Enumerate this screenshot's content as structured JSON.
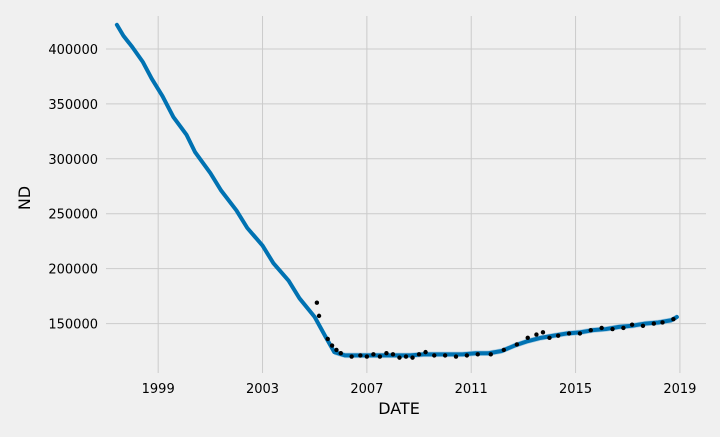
{
  "chart_data": {
    "type": "line",
    "title": "",
    "xlabel": "DATE",
    "ylabel": "ND",
    "x_ticks": [
      "1999",
      "2003",
      "2007",
      "2011",
      "2015",
      "2019"
    ],
    "y_ticks": [
      150000,
      200000,
      250000,
      300000,
      350000,
      400000
    ],
    "xlim": [
      "1997-01-01",
      "2020-01-01"
    ],
    "ylim": [
      105000,
      430000
    ],
    "grid": true,
    "colors": {
      "forecast_line": "#0072B2",
      "uncertainty_band": "#9fc7e0",
      "observed_points": "#000000",
      "grid": "#cbcbcb",
      "background": "#f0f0f0"
    },
    "series": [
      {
        "type": "line",
        "points": [
          [
            "1997-06-01",
            422000
          ],
          [
            "1997-09-01",
            412000
          ],
          [
            "1998-01-01",
            402000
          ],
          [
            "1998-06-01",
            388000
          ],
          [
            "1998-10-01",
            373000
          ],
          [
            "1999-03-01",
            357000
          ],
          [
            "1999-08-01",
            338000
          ],
          [
            "2000-02-01",
            322000
          ],
          [
            "2000-06-01",
            306000
          ],
          [
            "2001-01-01",
            287000
          ],
          [
            "2001-06-01",
            271000
          ],
          [
            "2002-01-01",
            253000
          ],
          [
            "2002-06-01",
            237000
          ],
          [
            "2003-01-01",
            221000
          ],
          [
            "2003-06-01",
            205000
          ],
          [
            "2004-01-01",
            189000
          ],
          [
            "2004-06-01",
            173000
          ],
          [
            "2005-01-01",
            156000
          ],
          [
            "2005-06-01",
            138000
          ],
          [
            "2005-10-01",
            124000
          ],
          [
            "2006-03-01",
            121000
          ],
          [
            "2006-09-01",
            121000
          ],
          [
            "2007-03-01",
            121000
          ],
          [
            "2007-09-01",
            121000
          ],
          [
            "2008-03-01",
            121000
          ],
          [
            "2008-09-01",
            121000
          ],
          [
            "2009-03-01",
            122000
          ],
          [
            "2009-09-01",
            122000
          ],
          [
            "2010-03-01",
            122000
          ],
          [
            "2010-09-01",
            122000
          ],
          [
            "2011-03-01",
            123000
          ],
          [
            "2011-09-01",
            123000
          ],
          [
            "2012-03-01",
            125000
          ],
          [
            "2012-09-01",
            130000
          ],
          [
            "2013-03-01",
            134000
          ],
          [
            "2013-09-01",
            137000
          ],
          [
            "2014-03-01",
            139000
          ],
          [
            "2014-09-01",
            141000
          ],
          [
            "2015-03-01",
            142000
          ],
          [
            "2015-09-01",
            144000
          ],
          [
            "2016-03-01",
            145000
          ],
          [
            "2016-09-01",
            147000
          ],
          [
            "2017-03-01",
            148000
          ],
          [
            "2017-09-01",
            150000
          ],
          [
            "2018-03-01",
            151000
          ],
          [
            "2018-09-01",
            153000
          ],
          [
            "2018-11-20",
            156000
          ]
        ],
        "band_halfwidth": 2500
      },
      {
        "type": "scatter",
        "points": [
          [
            "2005-02-01",
            169000
          ],
          [
            "2005-03-01",
            157000
          ],
          [
            "2005-07-01",
            136000
          ],
          [
            "2005-09-01",
            130000
          ],
          [
            "2005-11-01",
            126000
          ],
          [
            "2006-01-01",
            123000
          ],
          [
            "2006-06-01",
            120000
          ],
          [
            "2006-10-01",
            121000
          ],
          [
            "2007-01-01",
            120000
          ],
          [
            "2007-04-01",
            122000
          ],
          [
            "2007-07-01",
            120000
          ],
          [
            "2007-10-01",
            123000
          ],
          [
            "2008-01-01",
            122000
          ],
          [
            "2008-04-01",
            119000
          ],
          [
            "2008-07-01",
            120000
          ],
          [
            "2008-10-01",
            119000
          ],
          [
            "2009-01-01",
            122000
          ],
          [
            "2009-04-01",
            124000
          ],
          [
            "2009-08-01",
            121000
          ],
          [
            "2010-01-01",
            121000
          ],
          [
            "2010-06-01",
            120000
          ],
          [
            "2010-11-01",
            121000
          ],
          [
            "2011-04-01",
            122000
          ],
          [
            "2011-10-01",
            122000
          ],
          [
            "2012-04-01",
            126000
          ],
          [
            "2012-10-01",
            131000
          ],
          [
            "2013-03-01",
            137000
          ],
          [
            "2013-07-01",
            140000
          ],
          [
            "2013-10-01",
            142000
          ],
          [
            "2014-01-01",
            137000
          ],
          [
            "2014-05-01",
            139000
          ],
          [
            "2014-10-01",
            141000
          ],
          [
            "2015-03-01",
            141000
          ],
          [
            "2015-08-01",
            144000
          ],
          [
            "2016-01-01",
            146000
          ],
          [
            "2016-06-01",
            145000
          ],
          [
            "2016-11-01",
            146000
          ],
          [
            "2017-03-01",
            149000
          ],
          [
            "2017-08-01",
            148000
          ],
          [
            "2018-01-01",
            150000
          ],
          [
            "2018-05-01",
            151000
          ],
          [
            "2018-10-01",
            154000
          ]
        ]
      }
    ]
  }
}
